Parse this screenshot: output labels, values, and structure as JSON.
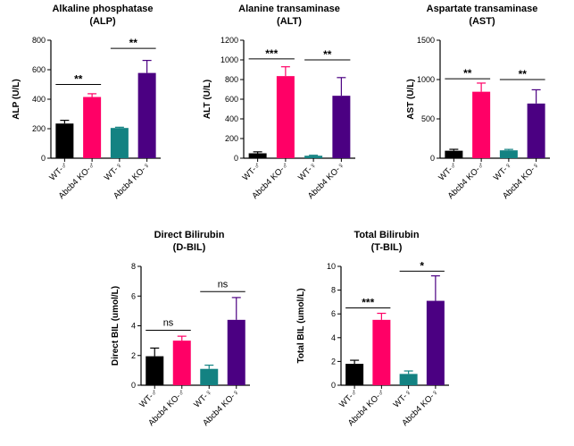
{
  "groups": [
    "WT-♂",
    "Abcb4 KO-♂",
    "WT-♀",
    "Abcb4 KO-♀"
  ],
  "colors": [
    "#000000",
    "#ff0066",
    "#138282",
    "#4b0082"
  ],
  "chart_data": [
    {
      "type": "bar",
      "title_line1": "Alkaline phosphatase",
      "title_line2": "(ALP)",
      "ylabel": "ALP (U/L)",
      "ylim": [
        0,
        800
      ],
      "yticks": [
        0,
        200,
        400,
        600,
        800
      ],
      "values": [
        235,
        415,
        205,
        578
      ],
      "errors": [
        22,
        22,
        5,
        85
      ],
      "significance": [
        {
          "from": 0,
          "to": 1,
          "label": "**",
          "y": 500
        },
        {
          "from": 2,
          "to": 3,
          "label": "**",
          "y": 745
        }
      ]
    },
    {
      "type": "bar",
      "title_line1": "Alanine transaminase",
      "title_line2": "(ALT)",
      "ylabel": "ALT (U/L)",
      "ylim": [
        0,
        1200
      ],
      "yticks": [
        0,
        200,
        400,
        600,
        800,
        1000,
        1200
      ],
      "values": [
        50,
        835,
        25,
        635
      ],
      "errors": [
        15,
        95,
        5,
        185
      ],
      "significance": [
        {
          "from": 0,
          "to": 1,
          "label": "***",
          "y": 1010
        },
        {
          "from": 2,
          "to": 3,
          "label": "**",
          "y": 1000
        }
      ]
    },
    {
      "type": "bar",
      "title_line1": "Aspartate transaminase",
      "title_line2": "(AST)",
      "ylabel": "AST (U/L)",
      "ylim": [
        0,
        1500
      ],
      "yticks": [
        0,
        500,
        1000,
        1500
      ],
      "values": [
        95,
        845,
        100,
        695
      ],
      "errors": [
        18,
        110,
        12,
        175
      ],
      "significance": [
        {
          "from": 0,
          "to": 1,
          "label": "**",
          "y": 1010
        },
        {
          "from": 2,
          "to": 3,
          "label": "**",
          "y": 1000
        }
      ]
    },
    {
      "type": "bar",
      "title_line1": "Direct Bilirubin",
      "title_line2": "(D-BIL)",
      "ylabel": "Direct BIL (umol/L)",
      "ylim": [
        0,
        8
      ],
      "yticks": [
        0,
        2,
        4,
        6,
        8
      ],
      "values": [
        1.95,
        3.0,
        1.1,
        4.4
      ],
      "errors": [
        0.55,
        0.3,
        0.25,
        1.5
      ],
      "significance": [
        {
          "from": 0,
          "to": 1,
          "label": "ns",
          "y": 3.7
        },
        {
          "from": 2,
          "to": 3,
          "label": "ns",
          "y": 6.3
        }
      ]
    },
    {
      "type": "bar",
      "title_line1": "Total Bilirubin",
      "title_line2": "(T-BIL)",
      "ylabel": "Total BIL (umol/L)",
      "ylim": [
        0,
        10
      ],
      "yticks": [
        0,
        2,
        4,
        6,
        8,
        10
      ],
      "values": [
        1.8,
        5.5,
        0.95,
        7.1
      ],
      "errors": [
        0.3,
        0.55,
        0.25,
        2.1
      ],
      "significance": [
        {
          "from": 0,
          "to": 1,
          "label": "***",
          "y": 6.5
        },
        {
          "from": 2,
          "to": 3,
          "label": "*",
          "y": 9.6
        }
      ]
    }
  ]
}
